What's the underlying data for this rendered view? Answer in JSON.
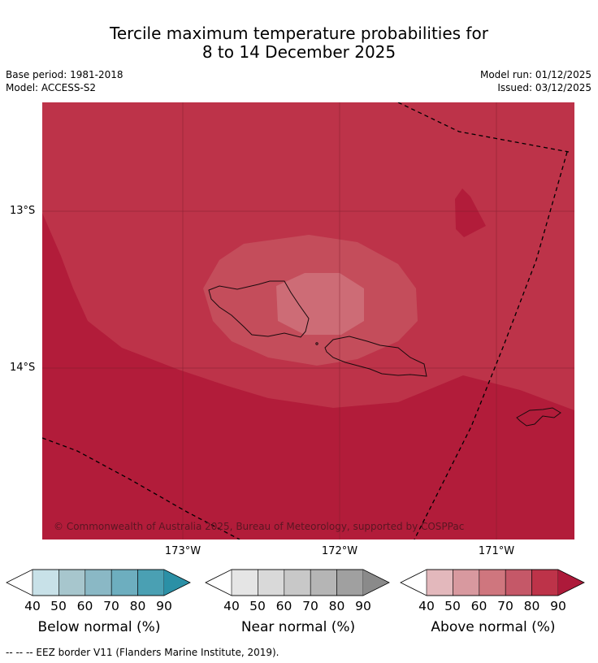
{
  "title": {
    "line1": "Tercile maximum temperature probabilities for",
    "line2": "8 to 14 December 2025"
  },
  "meta": {
    "base_period": "Base period: 1981-2018",
    "model": "Model: ACCESS-S2",
    "model_run": "Model run: 01/12/2025",
    "issued": "Issued: 03/12/2025"
  },
  "map": {
    "lat_labels": [
      "13°S",
      "14°S"
    ],
    "lon_labels": [
      "173°W",
      "172°W",
      "171°W"
    ],
    "copyright": "© Commonwealth of Australia 2025, Bureau of Meteorology, supported by COSPPac",
    "colors": {
      "above_80": "#bd3349",
      "above_90": "#b21c3a",
      "above_70": "#c44d5b",
      "above_60": "#cd6c76",
      "land": "none",
      "grid": "#7a1d2c"
    }
  },
  "legends": [
    {
      "title": "Below normal (%)",
      "ticks": [
        "40",
        "50",
        "60",
        "70",
        "80",
        "90"
      ],
      "colors": [
        "#ffffff",
        "#c8e1e8",
        "#a7c6cd",
        "#8ab8c5",
        "#6daebf",
        "#4aa0b3",
        "#2b90a6"
      ]
    },
    {
      "title": "Near normal (%)",
      "ticks": [
        "40",
        "50",
        "60",
        "70",
        "80",
        "90"
      ],
      "colors": [
        "#ffffff",
        "#e5e5e5",
        "#d9d9d9",
        "#c8c8c8",
        "#b5b5b5",
        "#a0a0a0",
        "#8a8a8a"
      ]
    },
    {
      "title": "Above normal (%)",
      "ticks": [
        "40",
        "50",
        "60",
        "70",
        "80",
        "90"
      ],
      "colors": [
        "#ffffff",
        "#e3b8bc",
        "#d8999f",
        "#cf767e",
        "#c55868",
        "#bd3349",
        "#ad1a3a"
      ]
    }
  ],
  "footnote": "--  --  -- EEZ border V11 (Flanders Marine Institute, 2019)."
}
